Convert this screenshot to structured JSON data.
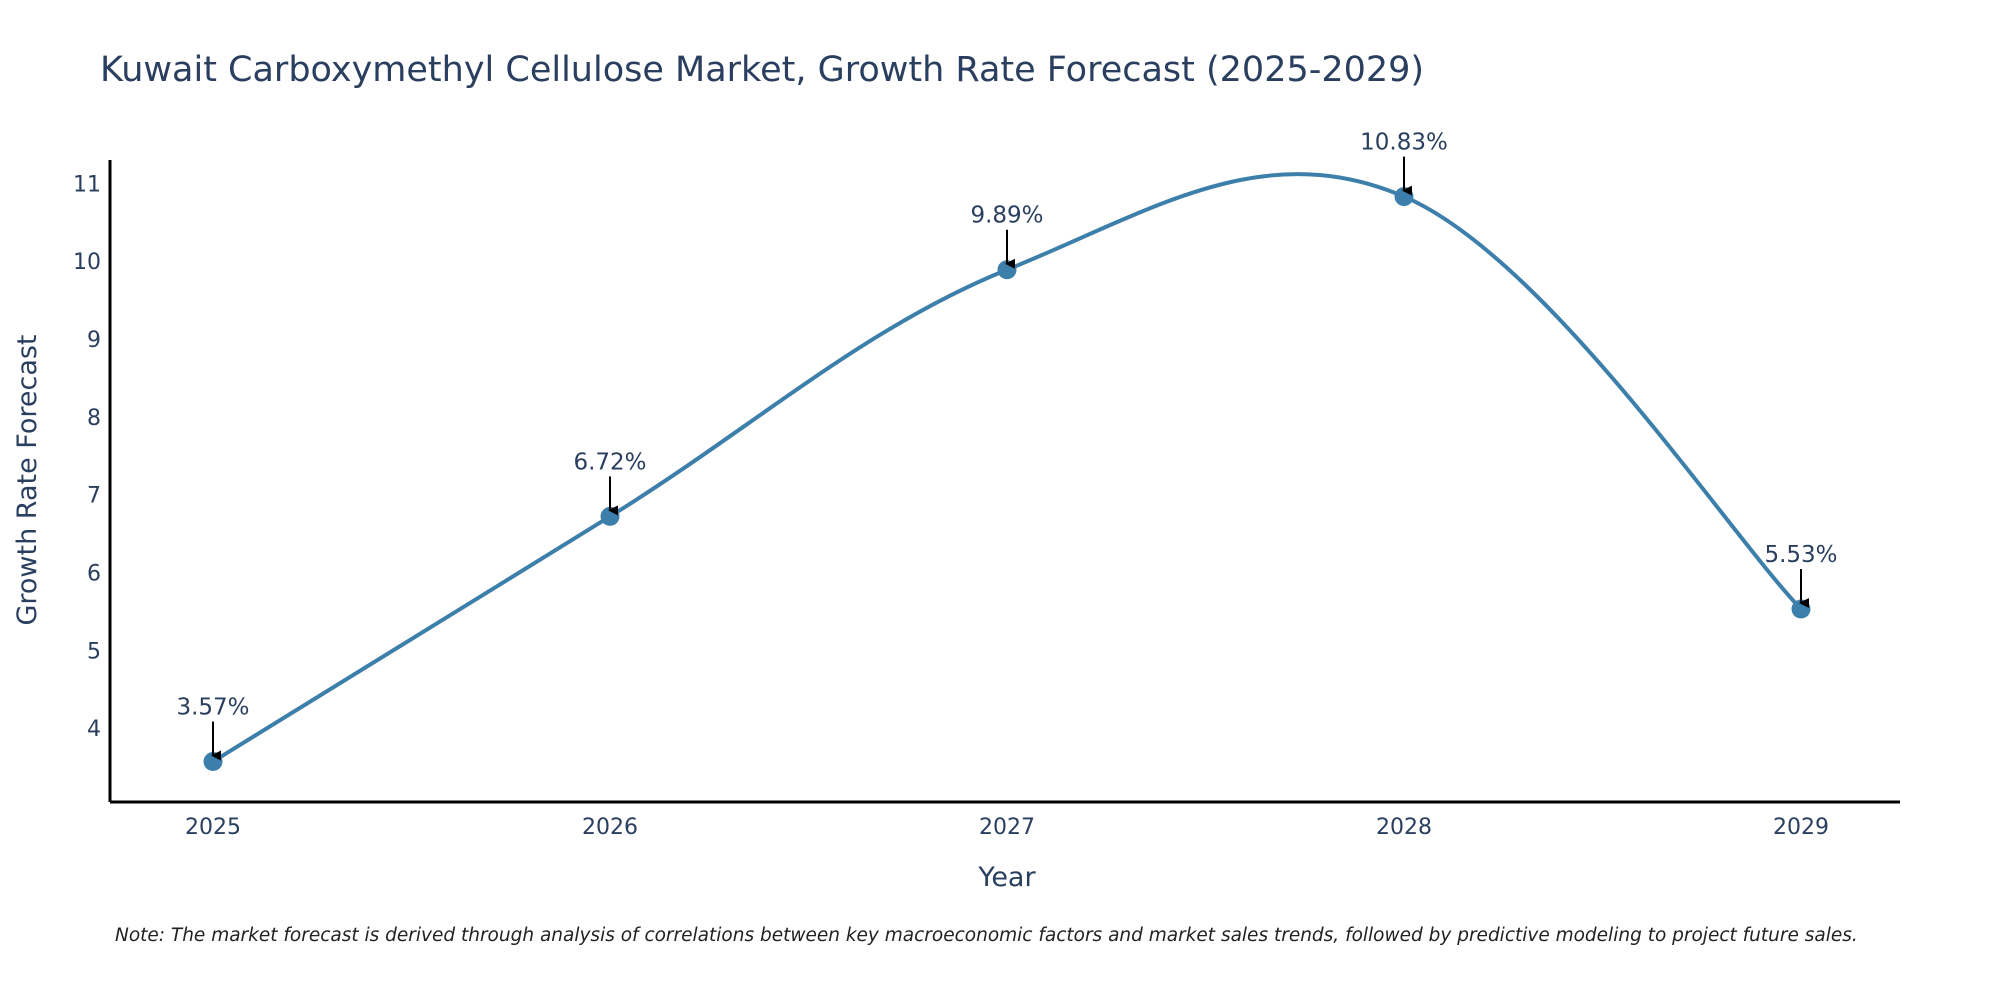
{
  "chart_data": {
    "type": "line",
    "title": "Kuwait Carboxymethyl Cellulose Market, Growth Rate Forecast (2025-2029)",
    "xlabel": "Year",
    "ylabel": "Growth Rate Forecast",
    "categories": [
      "2025",
      "2026",
      "2027",
      "2028",
      "2029"
    ],
    "series": [
      {
        "name": "Growth Rate Forecast",
        "values": [
          3.57,
          6.72,
          9.89,
          10.83,
          5.53
        ],
        "labels": [
          "3.57%",
          "6.72%",
          "9.89%",
          "10.83%",
          "5.53%"
        ]
      }
    ],
    "yticks": [
      4,
      5,
      6,
      7,
      8,
      9,
      10,
      11
    ],
    "ylim": [
      3.05,
      11.3
    ],
    "grid": false,
    "legend": "none",
    "line_color": "#3d7fab",
    "marker_color": "#3d7fab",
    "axis_color": "#000000",
    "arrow_color": "#000000",
    "note": "Note: The market forecast is derived through analysis of correlations between key macroeconomic factors and market sales trends, followed by predictive modeling to project future sales."
  }
}
